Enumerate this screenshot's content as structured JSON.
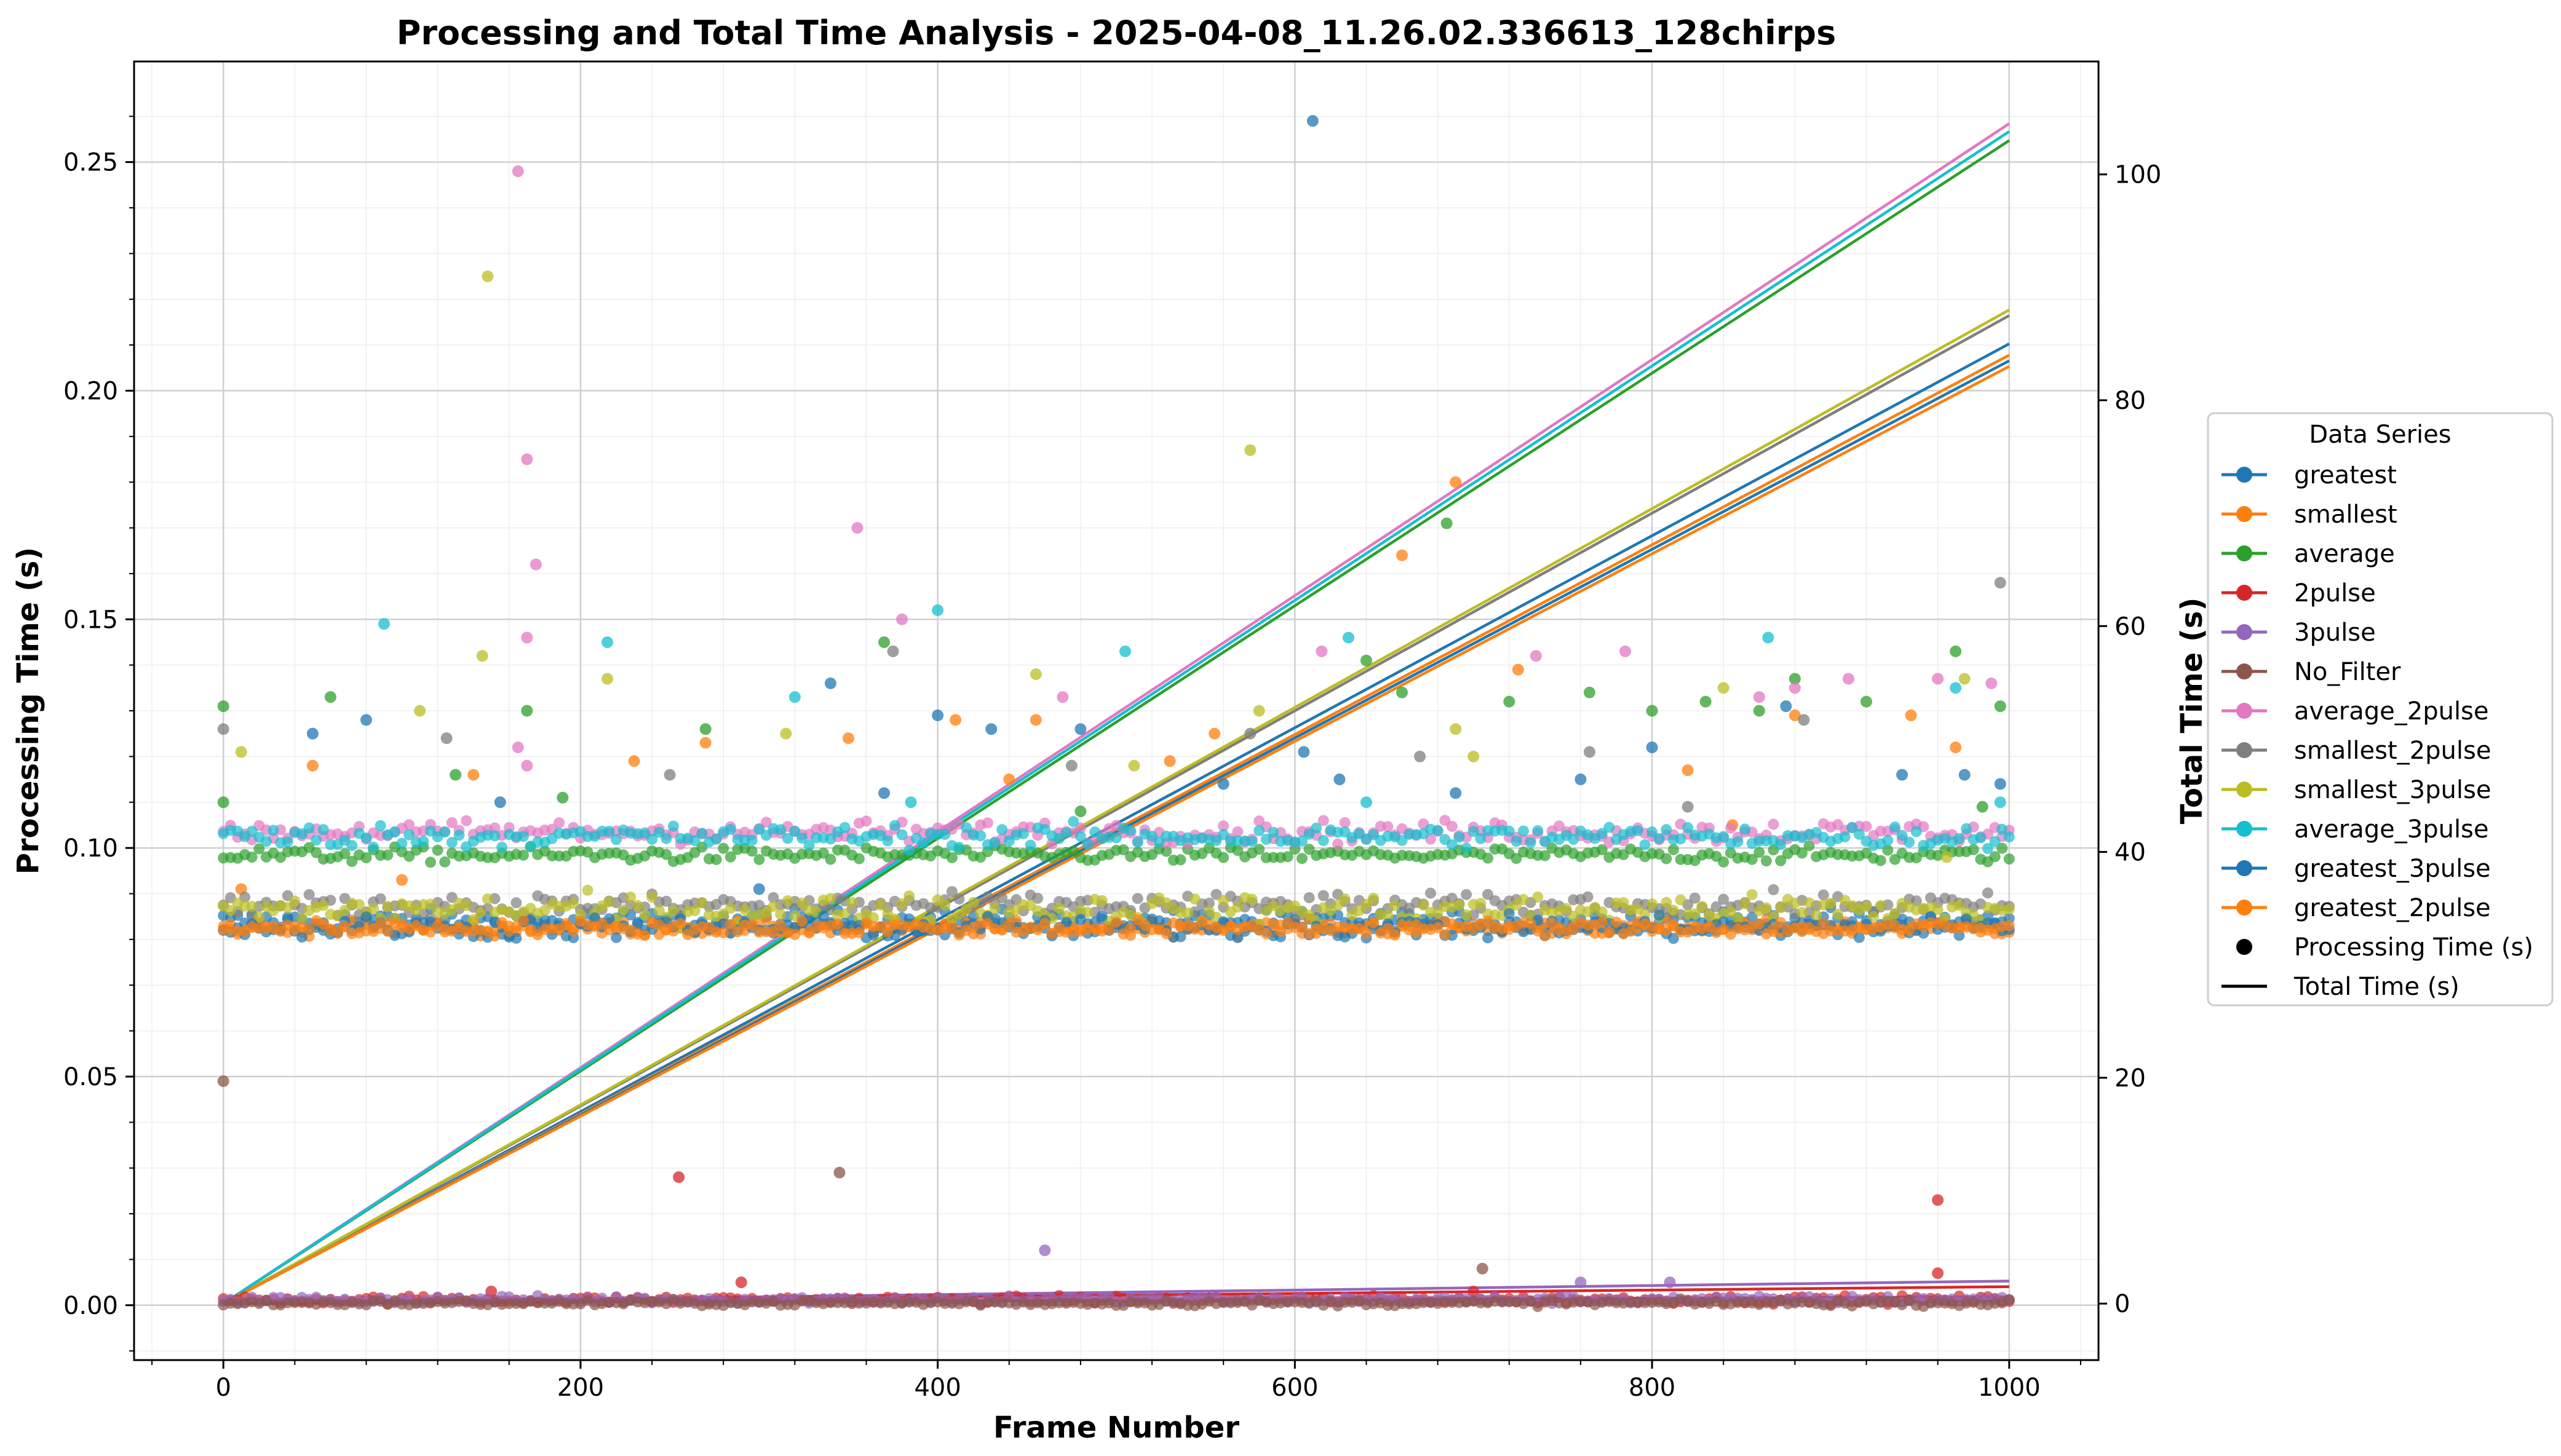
{
  "chart_data": {
    "type": "scatter",
    "title": "Processing and Total Time Analysis - 2025-04-08_11.26.02.336613_128chirps",
    "xlabel": "Frame Number",
    "ylabel": "Processing Time (s)",
    "y2label": "Total Time (s)",
    "xlim": [
      -50,
      1050
    ],
    "ylim": [
      -0.012,
      0.272
    ],
    "y2lim": [
      -5,
      110
    ],
    "xticks": [
      0,
      200,
      400,
      600,
      800,
      1000
    ],
    "yticks": [
      0.0,
      0.05,
      0.1,
      0.15,
      0.2,
      0.25
    ],
    "y2ticks": [
      0,
      20,
      40,
      60,
      80,
      100
    ],
    "grid": true,
    "legend": {
      "title": "Data Series",
      "placement": "outside-right",
      "marker_label": "Processing Time (s)",
      "line_label": "Total Time (s)"
    },
    "series": [
      {
        "name": "greatest",
        "color": "#1f77b4",
        "base": 0.084,
        "noise": 0.0012,
        "total_end": 85.0,
        "outliers": [
          [
            50,
            0.125
          ],
          [
            80,
            0.128
          ],
          [
            155,
            0.11
          ],
          [
            300,
            0.091
          ],
          [
            340,
            0.136
          ],
          [
            370,
            0.112
          ],
          [
            400,
            0.129
          ],
          [
            430,
            0.126
          ],
          [
            480,
            0.126
          ],
          [
            560,
            0.114
          ],
          [
            605,
            0.121
          ],
          [
            610,
            0.259
          ],
          [
            625,
            0.115
          ],
          [
            690,
            0.112
          ],
          [
            760,
            0.115
          ],
          [
            800,
            0.122
          ],
          [
            875,
            0.131
          ],
          [
            940,
            0.116
          ],
          [
            975,
            0.116
          ],
          [
            995,
            0.114
          ]
        ]
      },
      {
        "name": "smallest",
        "color": "#ff7f0e",
        "base": 0.0825,
        "noise": 0.0008,
        "total_end": 84.0,
        "outliers": [
          [
            10,
            0.091
          ],
          [
            50,
            0.118
          ],
          [
            100,
            0.093
          ],
          [
            140,
            0.116
          ],
          [
            230,
            0.119
          ],
          [
            270,
            0.123
          ],
          [
            350,
            0.124
          ],
          [
            410,
            0.128
          ],
          [
            440,
            0.115
          ],
          [
            455,
            0.128
          ],
          [
            530,
            0.119
          ],
          [
            555,
            0.125
          ],
          [
            660,
            0.164
          ],
          [
            690,
            0.18
          ],
          [
            725,
            0.139
          ],
          [
            820,
            0.117
          ],
          [
            845,
            0.105
          ],
          [
            880,
            0.129
          ],
          [
            945,
            0.129
          ],
          [
            970,
            0.122
          ]
        ]
      },
      {
        "name": "average",
        "color": "#2ca02c",
        "base": 0.0985,
        "noise": 0.0008,
        "total_end": 103.0,
        "outliers": [
          [
            0,
            0.131
          ],
          [
            0,
            0.11
          ],
          [
            60,
            0.133
          ],
          [
            130,
            0.116
          ],
          [
            170,
            0.13
          ],
          [
            190,
            0.111
          ],
          [
            270,
            0.126
          ],
          [
            370,
            0.145
          ],
          [
            480,
            0.108
          ],
          [
            640,
            0.141
          ],
          [
            660,
            0.134
          ],
          [
            685,
            0.171
          ],
          [
            720,
            0.132
          ],
          [
            765,
            0.134
          ],
          [
            800,
            0.13
          ],
          [
            830,
            0.132
          ],
          [
            860,
            0.13
          ],
          [
            880,
            0.137
          ],
          [
            920,
            0.132
          ],
          [
            970,
            0.143
          ],
          [
            985,
            0.109
          ],
          [
            995,
            0.131
          ]
        ]
      },
      {
        "name": "2pulse",
        "color": "#d62728",
        "base": 0.0012,
        "noise": 0.0004,
        "total_end": 1.5,
        "outliers": [
          [
            255,
            0.028
          ],
          [
            290,
            0.005
          ],
          [
            150,
            0.003
          ],
          [
            960,
            0.023
          ],
          [
            960,
            0.007
          ],
          [
            700,
            0.003
          ]
        ]
      },
      {
        "name": "3pulse",
        "color": "#9467bd",
        "base": 0.0012,
        "noise": 0.0004,
        "total_end": 2.0,
        "outliers": [
          [
            460,
            0.012
          ],
          [
            760,
            0.005
          ],
          [
            810,
            0.005
          ]
        ]
      },
      {
        "name": "No_Filter",
        "color": "#8c564b",
        "base": 0.0005,
        "noise": 0.0003,
        "total_end": 0.6,
        "outliers": [
          [
            0,
            0.049
          ],
          [
            345,
            0.029
          ],
          [
            705,
            0.008
          ]
        ]
      },
      {
        "name": "average_2pulse",
        "color": "#e377c2",
        "base": 0.1035,
        "noise": 0.0012,
        "total_end": 104.5,
        "outliers": [
          [
            165,
            0.248
          ],
          [
            170,
            0.185
          ],
          [
            175,
            0.162
          ],
          [
            170,
            0.146
          ],
          [
            165,
            0.122
          ],
          [
            170,
            0.118
          ],
          [
            355,
            0.17
          ],
          [
            380,
            0.15
          ],
          [
            470,
            0.133
          ],
          [
            615,
            0.143
          ],
          [
            735,
            0.142
          ],
          [
            785,
            0.143
          ],
          [
            860,
            0.133
          ],
          [
            880,
            0.135
          ],
          [
            910,
            0.137
          ],
          [
            960,
            0.137
          ],
          [
            990,
            0.136
          ]
        ]
      },
      {
        "name": "smallest_2pulse",
        "color": "#7f7f7f",
        "base": 0.0875,
        "noise": 0.0012,
        "total_end": 87.5,
        "outliers": [
          [
            0,
            0.126
          ],
          [
            125,
            0.124
          ],
          [
            250,
            0.116
          ],
          [
            375,
            0.143
          ],
          [
            475,
            0.118
          ],
          [
            575,
            0.125
          ],
          [
            670,
            0.12
          ],
          [
            765,
            0.121
          ],
          [
            820,
            0.109
          ],
          [
            885,
            0.128
          ],
          [
            995,
            0.158
          ]
        ]
      },
      {
        "name": "smallest_3pulse",
        "color": "#bcbd22",
        "base": 0.0865,
        "noise": 0.0015,
        "total_end": 88.0,
        "outliers": [
          [
            10,
            0.121
          ],
          [
            110,
            0.13
          ],
          [
            145,
            0.142
          ],
          [
            148,
            0.225
          ],
          [
            215,
            0.137
          ],
          [
            315,
            0.125
          ],
          [
            455,
            0.138
          ],
          [
            510,
            0.118
          ],
          [
            575,
            0.187
          ],
          [
            580,
            0.13
          ],
          [
            690,
            0.126
          ],
          [
            700,
            0.12
          ],
          [
            840,
            0.135
          ],
          [
            965,
            0.098
          ],
          [
            975,
            0.137
          ]
        ]
      },
      {
        "name": "average_3pulse",
        "color": "#17becf",
        "base": 0.1025,
        "noise": 0.0012,
        "total_end": 103.8,
        "outliers": [
          [
            90,
            0.149
          ],
          [
            215,
            0.145
          ],
          [
            320,
            0.133
          ],
          [
            385,
            0.11
          ],
          [
            400,
            0.152
          ],
          [
            505,
            0.143
          ],
          [
            630,
            0.146
          ],
          [
            640,
            0.11
          ],
          [
            865,
            0.146
          ],
          [
            970,
            0.135
          ],
          [
            995,
            0.11
          ]
        ]
      },
      {
        "name": "greatest_3pulse",
        "color": "#1f77b4",
        "base": 0.0825,
        "noise": 0.0012,
        "total_end": 83.5,
        "outliers": []
      },
      {
        "name": "greatest_2pulse",
        "color": "#ff7f0e",
        "base": 0.0825,
        "noise": 0.0008,
        "total_end": 83.0,
        "outliers": []
      }
    ]
  }
}
